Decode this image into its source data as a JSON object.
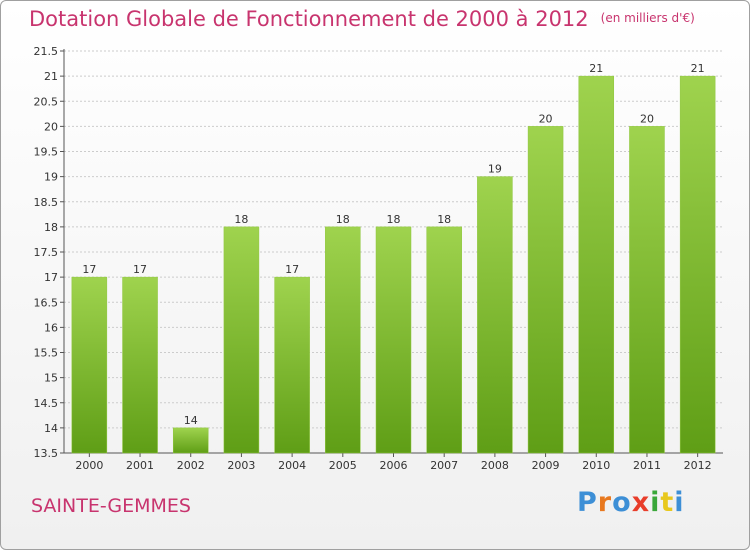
{
  "title": "Dotation Globale de Fonctionnement de 2000 à 2012",
  "unit_note": "(en milliers d'€)",
  "town": "SAINTE-GEMMES",
  "logo": {
    "text": "Proxiti",
    "letter_colors": [
      "#3d8fd6",
      "#e8781e",
      "#3d8fd6",
      "#e83d2a",
      "#3aa73a",
      "#e8c81e",
      "#3d8fd6"
    ]
  },
  "colors": {
    "bar_top": "#9fd34e",
    "bar_bottom": "#5f9e16",
    "title": "#c8346e",
    "grid": "#cccccc"
  },
  "chart_data": {
    "type": "bar",
    "categories": [
      "2000",
      "2001",
      "2002",
      "2003",
      "2004",
      "2005",
      "2006",
      "2007",
      "2008",
      "2009",
      "2010",
      "2011",
      "2012"
    ],
    "values": [
      17,
      17,
      14,
      18,
      17,
      18,
      18,
      18,
      19,
      20,
      21,
      20,
      21
    ],
    "data_labels": [
      "17",
      "17",
      "14",
      "18",
      "17",
      "18",
      "18",
      "18",
      "19",
      "20",
      "21",
      "20",
      "21"
    ],
    "ylim": [
      13.5,
      21.5
    ],
    "yticks": [
      "13.5",
      "14",
      "14.5",
      "15",
      "15.5",
      "16",
      "16.5",
      "17",
      "17.5",
      "18",
      "18.5",
      "19",
      "19.5",
      "20",
      "20.5",
      "21",
      "21.5"
    ],
    "title": "Dotation Globale de Fonctionnement de 2000 à 2012",
    "xlabel": "",
    "ylabel": "",
    "grid": true
  }
}
